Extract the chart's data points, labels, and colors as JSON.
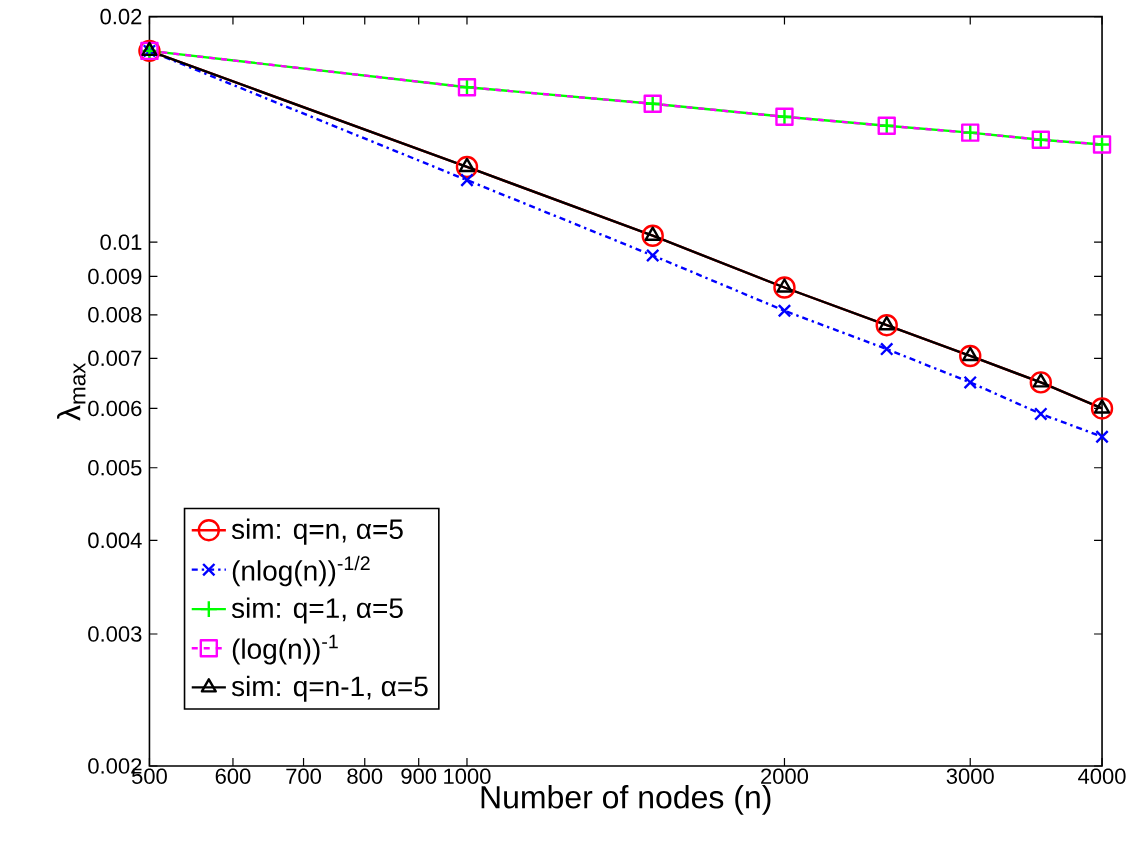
{
  "chart_data": {
    "type": "line",
    "xlabel": "Number of nodes (n)",
    "ylabel": "λ$_{max}$",
    "log": "xy",
    "legend": "bottom left",
    "xlim": [
      500,
      4000
    ],
    "ylim": [
      0.002,
      0.02
    ],
    "xticks": [
      500,
      600,
      700,
      800,
      900,
      1000,
      2000,
      3000,
      4000
    ],
    "yticks": [
      0.002,
      0.003,
      0.004,
      0.005,
      0.006,
      0.007,
      0.008,
      0.009,
      0.01,
      0.02
    ],
    "x": [
      500,
      1000,
      1500,
      2000,
      2500,
      3000,
      3500,
      4000
    ],
    "series": [
      {
        "name": "sim: q=n, α=5",
        "color": "#ff0000",
        "marker": "circle",
        "line_style": "solid",
        "values": [
          0.018,
          0.0126,
          0.0102,
          0.0087,
          0.00775,
          0.00705,
          0.0065,
          0.006
        ]
      },
      {
        "name": "(nlog(n))$^{-1/2}$",
        "color": "#0000ff",
        "marker": "cross",
        "line_style": "dashdot",
        "values": [
          0.018,
          0.0121,
          0.0096,
          0.0081,
          0.0072,
          0.0065,
          0.0059,
          0.0055
        ]
      },
      {
        "name": "sim: q=1, α=5",
        "color": "#00ff00",
        "marker": "plus",
        "line_style": "solid",
        "values": [
          0.018,
          0.0161,
          0.0153,
          0.0147,
          0.0143,
          0.014,
          0.0137,
          0.0135
        ]
      },
      {
        "name": "(log(n))$^{-1}$",
        "color": "#ff00ff",
        "marker": "square",
        "line_style": "dashed",
        "values": [
          0.018,
          0.0161,
          0.0153,
          0.0147,
          0.0143,
          0.014,
          0.0137,
          0.0135
        ]
      },
      {
        "name": "sim: q=n-1, α=5",
        "color": "#000000",
        "marker": "triangle",
        "line_style": "solid",
        "values": [
          0.018,
          0.0126,
          0.0102,
          0.0087,
          0.00775,
          0.00705,
          0.0065,
          0.006
        ]
      }
    ]
  }
}
